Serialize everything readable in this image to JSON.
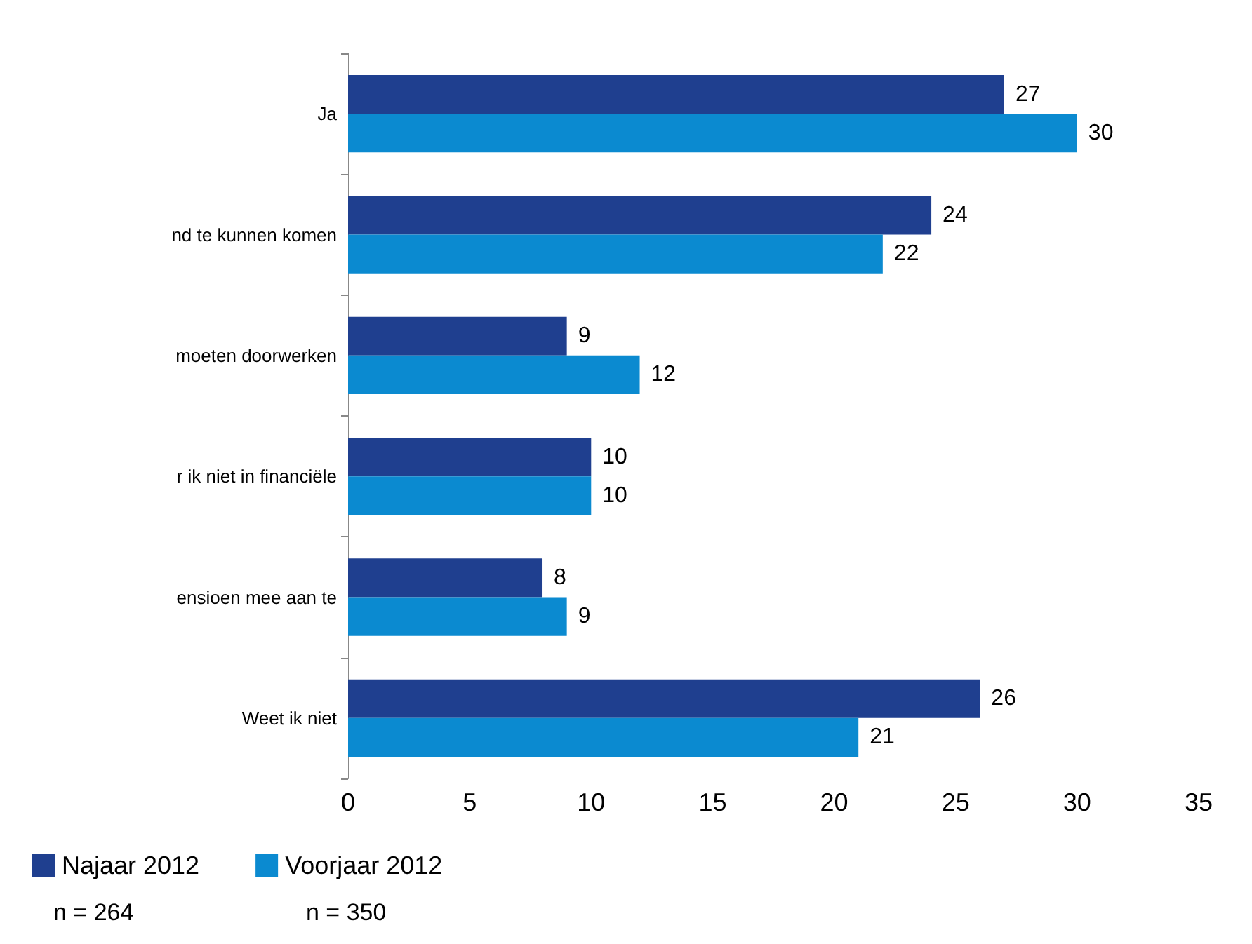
{
  "chart_data": {
    "type": "bar",
    "orientation": "horizontal",
    "categories": [
      "Ja",
      "nd te kunnen komen",
      "moeten doorwerken",
      "r ik niet in financiële",
      "ensioen mee aan te",
      "Weet ik niet"
    ],
    "series": [
      {
        "name": "Najaar 2012",
        "color": "#1f3f8f",
        "values": [
          27,
          24,
          9,
          10,
          8,
          26
        ]
      },
      {
        "name": "Voorjaar 2012",
        "color": "#0b8ad0",
        "values": [
          30,
          22,
          12,
          10,
          9,
          21
        ]
      }
    ],
    "xlim": [
      0,
      35
    ],
    "xticks": [
      0,
      5,
      10,
      15,
      20,
      25,
      30,
      35
    ],
    "grid": false,
    "legend": "bottom left",
    "data_labels": true,
    "annotations": [
      "n = 264",
      "n = 350"
    ]
  }
}
